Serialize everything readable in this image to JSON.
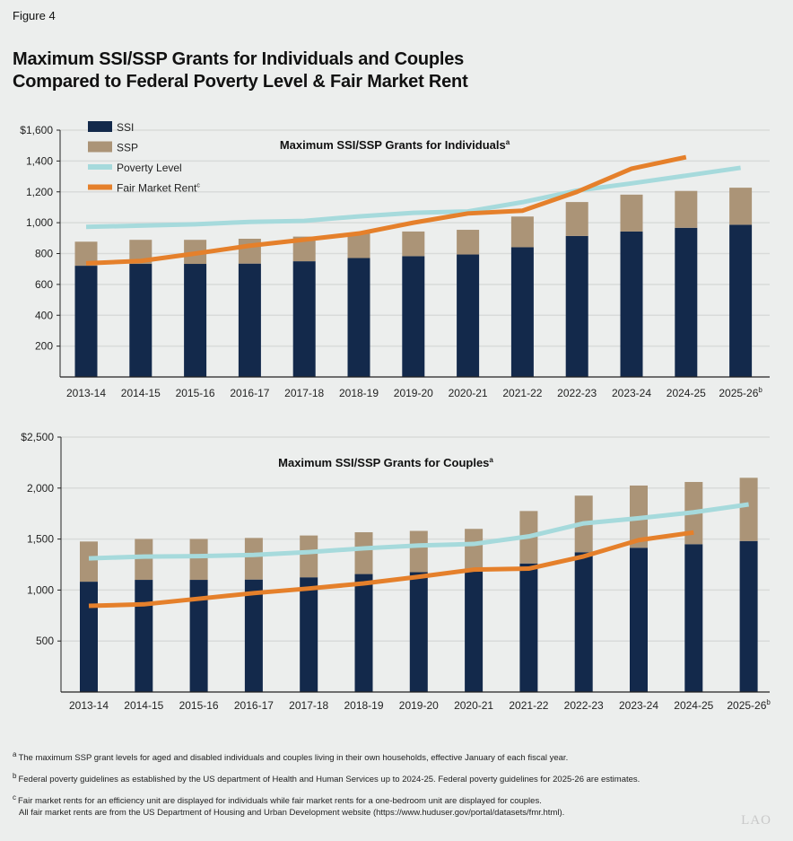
{
  "figure_label": "Figure 4",
  "title_line1": "Maximum SSI/SSP Grants for Individuals and Couples",
  "title_line2": "Compared to Federal Poverty Level & Fair Market Rent",
  "colors": {
    "ssi": "#13294b",
    "ssp": "#ab9477",
    "poverty": "#a6dadc",
    "fmr": "#e5802b",
    "grid": "#d9dbda"
  },
  "legend": [
    {
      "label": "SSI",
      "sup": "",
      "key": "ssi",
      "kind": "box"
    },
    {
      "label": "SSP",
      "sup": "",
      "key": "ssp",
      "kind": "box"
    },
    {
      "label": "Poverty Level",
      "sup": "",
      "key": "poverty",
      "kind": "line"
    },
    {
      "label": "Fair Market Rent",
      "sup": "c",
      "key": "fmr",
      "kind": "line"
    }
  ],
  "chart_data": [
    {
      "type": "bar",
      "stacked": true,
      "title": "Maximum SSI/SSP Grants for Individuals",
      "title_sup": "a",
      "categories": [
        "2013-14",
        "2014-15",
        "2015-16",
        "2016-17",
        "2017-18",
        "2018-19",
        "2019-20",
        "2020-21",
        "2021-22",
        "2022-23",
        "2023-24",
        "2024-25",
        "2025-26"
      ],
      "last_category_sup": "b",
      "yticks": [
        "200",
        "400",
        "600",
        "800",
        "1,000",
        "1,200",
        "1,400",
        "$1,600"
      ],
      "ylim": [
        0,
        1600
      ],
      "grid": true,
      "legend_position": "top-left",
      "series": [
        {
          "name": "SSI",
          "type": "bar",
          "values": [
            721,
            733,
            733,
            735,
            750,
            771,
            783,
            794,
            841,
            914,
            943,
            967,
            987
          ]
        },
        {
          "name": "SSP",
          "type": "bar",
          "values": [
            156,
            156,
            156,
            161,
            160,
            160,
            160,
            160,
            199,
            220,
            239,
            239,
            240
          ]
        },
        {
          "name": "Poverty Level",
          "type": "line",
          "values": [
            973,
            981,
            990,
            1005,
            1012,
            1041,
            1064,
            1073,
            1133,
            1208,
            1255,
            1305,
            1356
          ]
        },
        {
          "name": "Fair Market Rent",
          "type": "line",
          "values": [
            737,
            752,
            800,
            851,
            890,
            930,
            1000,
            1060,
            1078,
            1200,
            1350,
            1425,
            null
          ]
        }
      ]
    },
    {
      "type": "bar",
      "stacked": true,
      "title": "Maximum SSI/SSP Grants for Couples",
      "title_sup": "a",
      "categories": [
        "2013-14",
        "2014-15",
        "2015-16",
        "2016-17",
        "2017-18",
        "2018-19",
        "2019-20",
        "2020-21",
        "2021-22",
        "2022-23",
        "2023-24",
        "2024-25",
        "2025-26"
      ],
      "last_category_sup": "b",
      "yticks": [
        "500",
        "1,000",
        "1,500",
        "2,000",
        "$2,500"
      ],
      "ylim": [
        0,
        2500
      ],
      "grid": true,
      "series": [
        {
          "name": "SSI",
          "type": "bar",
          "values": [
            1082,
            1100,
            1100,
            1103,
            1125,
            1157,
            1175,
            1191,
            1261,
            1371,
            1415,
            1450,
            1481
          ]
        },
        {
          "name": "SSP",
          "type": "bar",
          "values": [
            394,
            401,
            401,
            408,
            410,
            410,
            405,
            409,
            514,
            555,
            610,
            610,
            620
          ]
        },
        {
          "name": "Poverty Level",
          "type": "line",
          "values": [
            1311,
            1328,
            1333,
            1345,
            1372,
            1409,
            1437,
            1452,
            1526,
            1654,
            1704,
            1763,
            1840
          ]
        },
        {
          "name": "Fair Market Rent",
          "type": "line",
          "values": [
            845,
            860,
            915,
            970,
            1015,
            1065,
            1130,
            1200,
            1210,
            1330,
            1490,
            1565,
            null
          ]
        }
      ]
    }
  ],
  "footnotes": [
    {
      "mark": "a",
      "text": "The maximum SSP grant levels for aged and disabled individuals and couples living in their own households, effective January of each fiscal year."
    },
    {
      "mark": "b",
      "text": "Federal poverty guidelines as established by the US department of Health and Human Services up to 2024-25. Federal poverty guidelines for 2025-26 are estimates."
    },
    {
      "mark": "c",
      "text": "Fair market rents for an efficiency unit are displayed for individuals while fair market rents for a one-bedroom unit are displayed for couples.",
      "text2": "All fair market rents are from the US Department of Housing and Urban Development website (https://www.huduser.gov/portal/datasets/fmr.html)."
    }
  ],
  "logo": "LAO"
}
